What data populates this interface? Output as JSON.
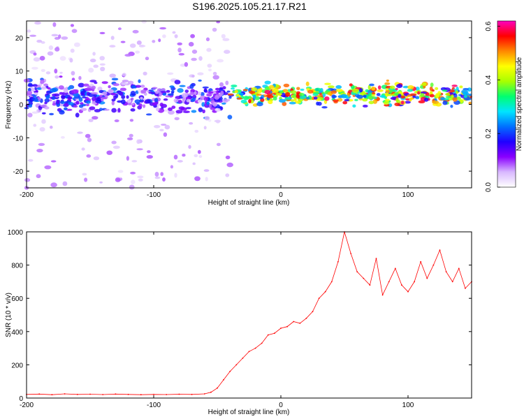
{
  "title": "S196.2025.105.21.17.R21",
  "chart_data": [
    {
      "type": "heatmap",
      "xlabel": "Height of straight line (km)",
      "ylabel": "Frequency (Hz)",
      "xlim": [
        -200,
        150
      ],
      "ylim": [
        -25,
        25
      ],
      "x_ticks": [
        -200,
        -100,
        0,
        100
      ],
      "y_ticks": [
        -20,
        -10,
        0,
        10,
        20
      ],
      "colorbar": {
        "label": "Normalized spectral amplitude",
        "range": [
          0.0,
          0.62
        ],
        "ticks": [
          0.0,
          0.2,
          0.4,
          0.6
        ],
        "tick_labels": [
          "0.0",
          "0.2",
          "0.4",
          "0.6"
        ],
        "colors": [
          "#ffffff",
          "#d8b8ff",
          "#8a00ff",
          "#2000ff",
          "#0070ff",
          "#00e5ff",
          "#00ff70",
          "#a8ff00",
          "#ffff00",
          "#ff8800",
          "#ff0000",
          "#ff00c0"
        ]
      },
      "regions": [
        {
          "x": [
            -200,
            -40
          ],
          "description_free": true,
          "noise_level": 0.05,
          "ridge_center_hz": 2,
          "ridge_amplitude": 0.2
        },
        {
          "x": [
            -40,
            150
          ],
          "noise_level": 0.0,
          "ridge_center_hz": 3,
          "ridge_amplitude": 0.5
        }
      ]
    },
    {
      "type": "line",
      "xlabel": "Height of straight line (km)",
      "ylabel": "SNR (10 * v/v)",
      "xlim": [
        -200,
        150
      ],
      "ylim": [
        0,
        1000
      ],
      "x_ticks": [
        -200,
        -100,
        0,
        100
      ],
      "y_ticks": [
        0,
        200,
        400,
        600,
        800,
        1000
      ],
      "line_color": "#ff0000",
      "series": [
        {
          "x": [
            -200,
            -190,
            -180,
            -170,
            -160,
            -150,
            -140,
            -130,
            -120,
            -110,
            -100,
            -90,
            -80,
            -70,
            -60,
            -55,
            -50,
            -45,
            -40,
            -35,
            -30,
            -25,
            -20,
            -15,
            -10,
            -5,
            0,
            5,
            10,
            15,
            20,
            25,
            30,
            35,
            40,
            45,
            50,
            55,
            60,
            65,
            70,
            75,
            80,
            85,
            90,
            95,
            100,
            105,
            110,
            115,
            120,
            125,
            130,
            135,
            140,
            145,
            150
          ],
          "y": [
            22,
            24,
            20,
            25,
            22,
            23,
            21,
            24,
            22,
            20,
            22,
            21,
            23,
            22,
            25,
            35,
            60,
            110,
            160,
            200,
            240,
            280,
            300,
            330,
            380,
            390,
            420,
            430,
            460,
            450,
            480,
            520,
            600,
            640,
            700,
            820,
            1000,
            870,
            760,
            720,
            680,
            840,
            620,
            700,
            780,
            680,
            640,
            700,
            820,
            720,
            800,
            890,
            760,
            700,
            780,
            660,
            700
          ]
        }
      ]
    }
  ]
}
